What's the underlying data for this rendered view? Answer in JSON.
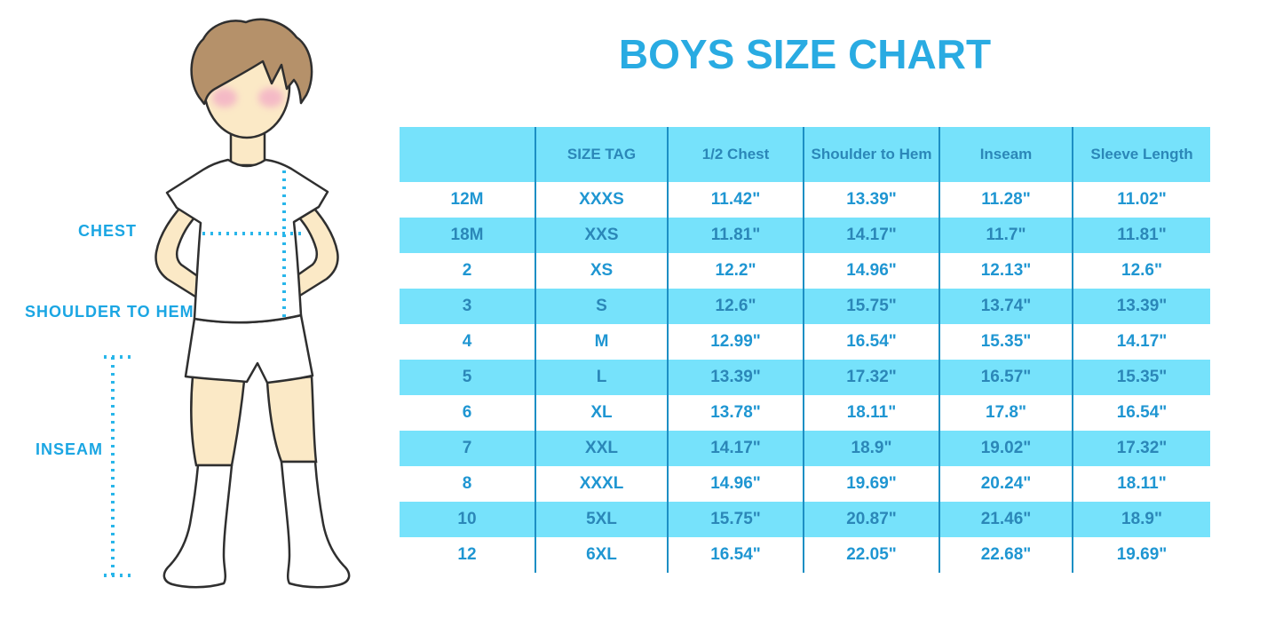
{
  "title": "BOYS SIZE CHART",
  "figure": {
    "name": "boy-with-measurement-guides",
    "labels": {
      "chest": "CHEST",
      "shoulder_to_hem": "SHOULDER TO HEM",
      "inseam": "INSEAM"
    }
  },
  "chart_data": {
    "type": "table",
    "title": "BOYS SIZE CHART",
    "columns": [
      "",
      "SIZE TAG",
      "1/2 Chest",
      "Shoulder to Hem",
      "Inseam",
      "Sleeve Length"
    ],
    "rows": [
      [
        "12M",
        "XXXS",
        "11.42\"",
        "13.39\"",
        "11.28\"",
        "11.02\""
      ],
      [
        "18M",
        "XXS",
        "11.81\"",
        "14.17\"",
        "11.7\"",
        "11.81\""
      ],
      [
        "2",
        "XS",
        "12.2\"",
        "14.96\"",
        "12.13\"",
        "12.6\""
      ],
      [
        "3",
        "S",
        "12.6\"",
        "15.75\"",
        "13.74\"",
        "13.39\""
      ],
      [
        "4",
        "M",
        "12.99\"",
        "16.54\"",
        "15.35\"",
        "14.17\""
      ],
      [
        "5",
        "L",
        "13.39\"",
        "17.32\"",
        "16.57\"",
        "15.35\""
      ],
      [
        "6",
        "XL",
        "13.78\"",
        "18.11\"",
        "17.8\"",
        "16.54\""
      ],
      [
        "7",
        "XXL",
        "14.17\"",
        "18.9\"",
        "19.02\"",
        "17.32\""
      ],
      [
        "8",
        "XXXL",
        "14.96\"",
        "19.69\"",
        "20.24\"",
        "18.11\""
      ],
      [
        "10",
        "5XL",
        "15.75\"",
        "20.87\"",
        "21.46\"",
        "18.9\""
      ],
      [
        "12",
        "6XL",
        "16.54\"",
        "22.05\"",
        "22.68\"",
        "19.69\""
      ]
    ],
    "stripe_pattern": "alternating rows, header and odd data rows cyan",
    "legend_position": "none",
    "grid": "vertical column dividers only"
  },
  "colors": {
    "accent_blue": "#29abe2",
    "label_blue": "#1ba6e3",
    "stripe_bg": "#76e2fb",
    "divider": "#1d8fc4",
    "header_text": "#2b87b8",
    "cell_text": "#1f96d2",
    "dotted_line": "#29b6ea",
    "skin": "#fbe9c6",
    "hair": "#b5916a",
    "outline": "#2f2f2f",
    "cheek": "#f3aec6"
  }
}
